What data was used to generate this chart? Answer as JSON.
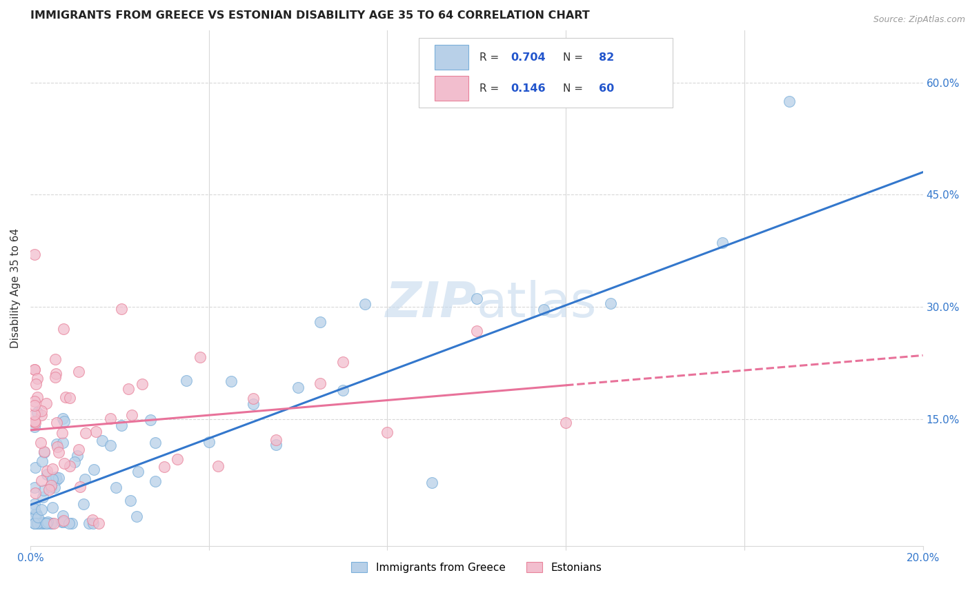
{
  "title": "IMMIGRANTS FROM GREECE VS ESTONIAN DISABILITY AGE 35 TO 64 CORRELATION CHART",
  "source": "Source: ZipAtlas.com",
  "ylabel": "Disability Age 35 to 64",
  "xlim": [
    0.0,
    0.2
  ],
  "ylim": [
    -0.02,
    0.67
  ],
  "right_yticks": [
    0.15,
    0.3,
    0.45,
    0.6
  ],
  "right_yticklabels": [
    "15.0%",
    "30.0%",
    "45.0%",
    "60.0%"
  ],
  "r_blue": "0.704",
  "n_blue": "82",
  "r_pink": "0.146",
  "n_pink": "60",
  "blue_fill": "#b8d0e8",
  "blue_edge": "#7aafda",
  "pink_fill": "#f2bece",
  "pink_edge": "#e8829a",
  "blue_line_color": "#3377cc",
  "pink_line_color": "#e8729a",
  "legend_r_color": "#2255cc",
  "watermark_color": "#c5d9ed",
  "grid_color": "#d8d8d8",
  "blue_line_x0": 0.0,
  "blue_line_y0": 0.035,
  "blue_line_x1": 0.2,
  "blue_line_y1": 0.48,
  "pink_line_x0": 0.0,
  "pink_line_y0": 0.135,
  "pink_line_x1": 0.2,
  "pink_line_y1": 0.235
}
